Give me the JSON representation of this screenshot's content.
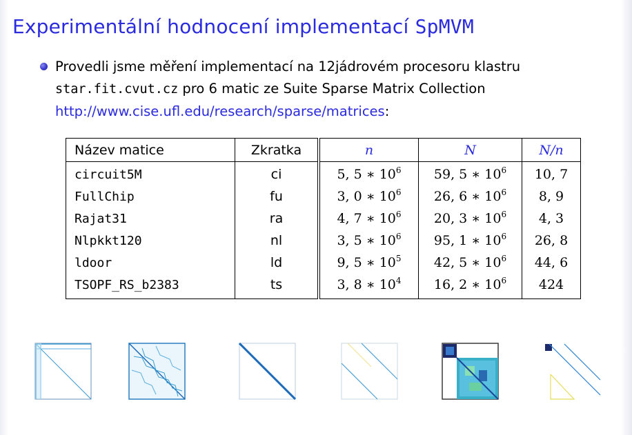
{
  "slide": {
    "title_prefix": "Experimentální hodnocení implementací",
    "title_code": "SpMVM",
    "bullet": {
      "line1": "Provedli jsme měření implementací na 12jádrovém procesoru klastru",
      "host": "star.fit.cvut.cz",
      "line2_rest": " pro 6 matic ze Suite Sparse Matrix Collection",
      "link": "http://www.cise.ufl.edu/research/sparse/matrices",
      "link_suffix": ":"
    },
    "accent_color": "#2a2adf"
  },
  "table": {
    "headers": {
      "name": "Název matice",
      "abbr": "Zkratka",
      "n": "n",
      "N": "N",
      "ratio": "N/n"
    },
    "rows": [
      {
        "name": "circuit5M",
        "abbr": "ci",
        "n_mant": "5, 5 ∗ 10",
        "n_exp": "6",
        "N_mant": "59, 5 ∗ 10",
        "N_exp": "6",
        "ratio": "10, 7"
      },
      {
        "name": "FullChip",
        "abbr": "fu",
        "n_mant": "3, 0 ∗ 10",
        "n_exp": "6",
        "N_mant": "26, 6 ∗ 10",
        "N_exp": "6",
        "ratio": "8, 9"
      },
      {
        "name": "Rajat31",
        "abbr": "ra",
        "n_mant": "4, 7 ∗ 10",
        "n_exp": "6",
        "N_mant": "20, 3 ∗ 10",
        "N_exp": "6",
        "ratio": "4, 3"
      },
      {
        "name": "Nlpkkt120",
        "abbr": "nl",
        "n_mant": "3, 5 ∗ 10",
        "n_exp": "6",
        "N_mant": "95, 1 ∗ 10",
        "N_exp": "6",
        "ratio": "26, 8"
      },
      {
        "name": "ldoor",
        "abbr": "ld",
        "n_mant": "9, 5 ∗ 10",
        "n_exp": "5",
        "N_mant": "42, 5 ∗ 10",
        "N_exp": "6",
        "ratio": "44, 6"
      },
      {
        "name": "TSOPF_RS_b2383",
        "abbr": "ts",
        "n_mant": "3, 8 ∗ 10",
        "n_exp": "4",
        "N_mant": "16, 2 ∗ 10",
        "N_exp": "6",
        "ratio": "424"
      }
    ]
  },
  "thumbnails": [
    "circuit5M-sparsity-pattern",
    "FullChip-sparsity-pattern",
    "Rajat31-sparsity-pattern",
    "Nlpkkt120-sparsity-pattern",
    "ldoor-sparsity-pattern",
    "TSOPF_RS_b2383-sparsity-pattern"
  ]
}
